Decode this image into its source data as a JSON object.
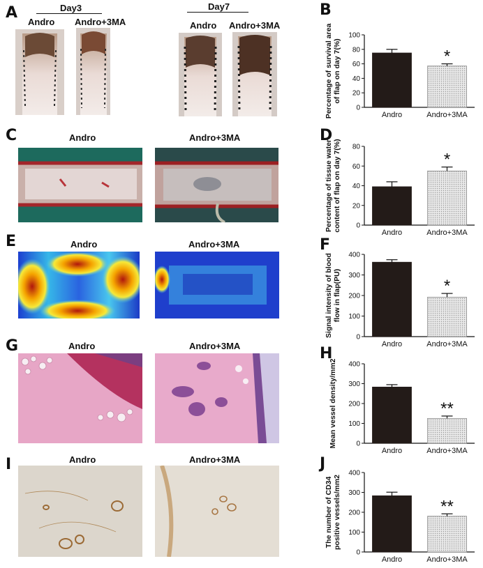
{
  "panels": {
    "A": "A",
    "B": "B",
    "C": "C",
    "D": "D",
    "E": "E",
    "F": "F",
    "G": "G",
    "H": "H",
    "I": "I",
    "J": "J"
  },
  "panel_a": {
    "day3": "Day3",
    "day7": "Day7",
    "groups": [
      "Andro",
      "Andro+3MA",
      "Andro",
      "Andro+3MA"
    ]
  },
  "panel_c": {
    "groups": [
      "Andro",
      "Andro+3MA"
    ]
  },
  "panel_e": {
    "groups": [
      "Andro",
      "Andro+3MA"
    ]
  },
  "panel_g": {
    "groups": [
      "Andro",
      "Andro+3MA"
    ]
  },
  "panel_i": {
    "groups": [
      "Andro",
      "Andro+3MA"
    ]
  },
  "colors": {
    "bar_dark": "#231b18",
    "bar_light": "#dcdcdc",
    "axis": "#111111"
  },
  "chart_data": [
    {
      "id": "B",
      "type": "bar",
      "categories": [
        "Andro",
        "Andro+3MA"
      ],
      "values": [
        75,
        57
      ],
      "errors": [
        5,
        3
      ],
      "significance": [
        "",
        "*"
      ],
      "ylabel": [
        "Percentage of survival area",
        "of flap on day 7(%)"
      ],
      "ylim": [
        0,
        100
      ],
      "yticks": [
        0,
        20,
        40,
        60,
        80,
        100
      ]
    },
    {
      "id": "D",
      "type": "bar",
      "categories": [
        "Andro",
        "Andro+3MA"
      ],
      "values": [
        39,
        55
      ],
      "errors": [
        5,
        4
      ],
      "significance": [
        "",
        "*"
      ],
      "ylabel": [
        "Percentage of tissue water",
        "content of flap on day 7(%)"
      ],
      "ylim": [
        0,
        80
      ],
      "yticks": [
        0,
        20,
        40,
        60,
        80
      ]
    },
    {
      "id": "F",
      "type": "bar",
      "categories": [
        "Andro",
        "Andro+3MA"
      ],
      "values": [
        362,
        192
      ],
      "errors": [
        12,
        18
      ],
      "significance": [
        "",
        "*"
      ],
      "ylabel": [
        "Signal intensity of blood",
        "flow in flap(PU)"
      ],
      "ylim": [
        0,
        400
      ],
      "yticks": [
        0,
        100,
        200,
        300,
        400
      ]
    },
    {
      "id": "H",
      "type": "bar",
      "categories": [
        "Andro",
        "Andro+3MA"
      ],
      "values": [
        283,
        125
      ],
      "errors": [
        12,
        12
      ],
      "significance": [
        "",
        "**"
      ],
      "ylabel": [
        "Mean vessel density/mm2"
      ],
      "ylim": [
        0,
        400
      ],
      "yticks": [
        0,
        100,
        200,
        300,
        400
      ]
    },
    {
      "id": "J",
      "type": "bar",
      "categories": [
        "Andro",
        "Andro+3MA"
      ],
      "values": [
        283,
        180
      ],
      "errors": [
        18,
        12
      ],
      "significance": [
        "",
        "**"
      ],
      "ylabel": [
        "The number of CD34",
        "positive vessels/mm2"
      ],
      "ylim": [
        0,
        400
      ],
      "yticks": [
        0,
        100,
        200,
        300,
        400
      ]
    }
  ]
}
